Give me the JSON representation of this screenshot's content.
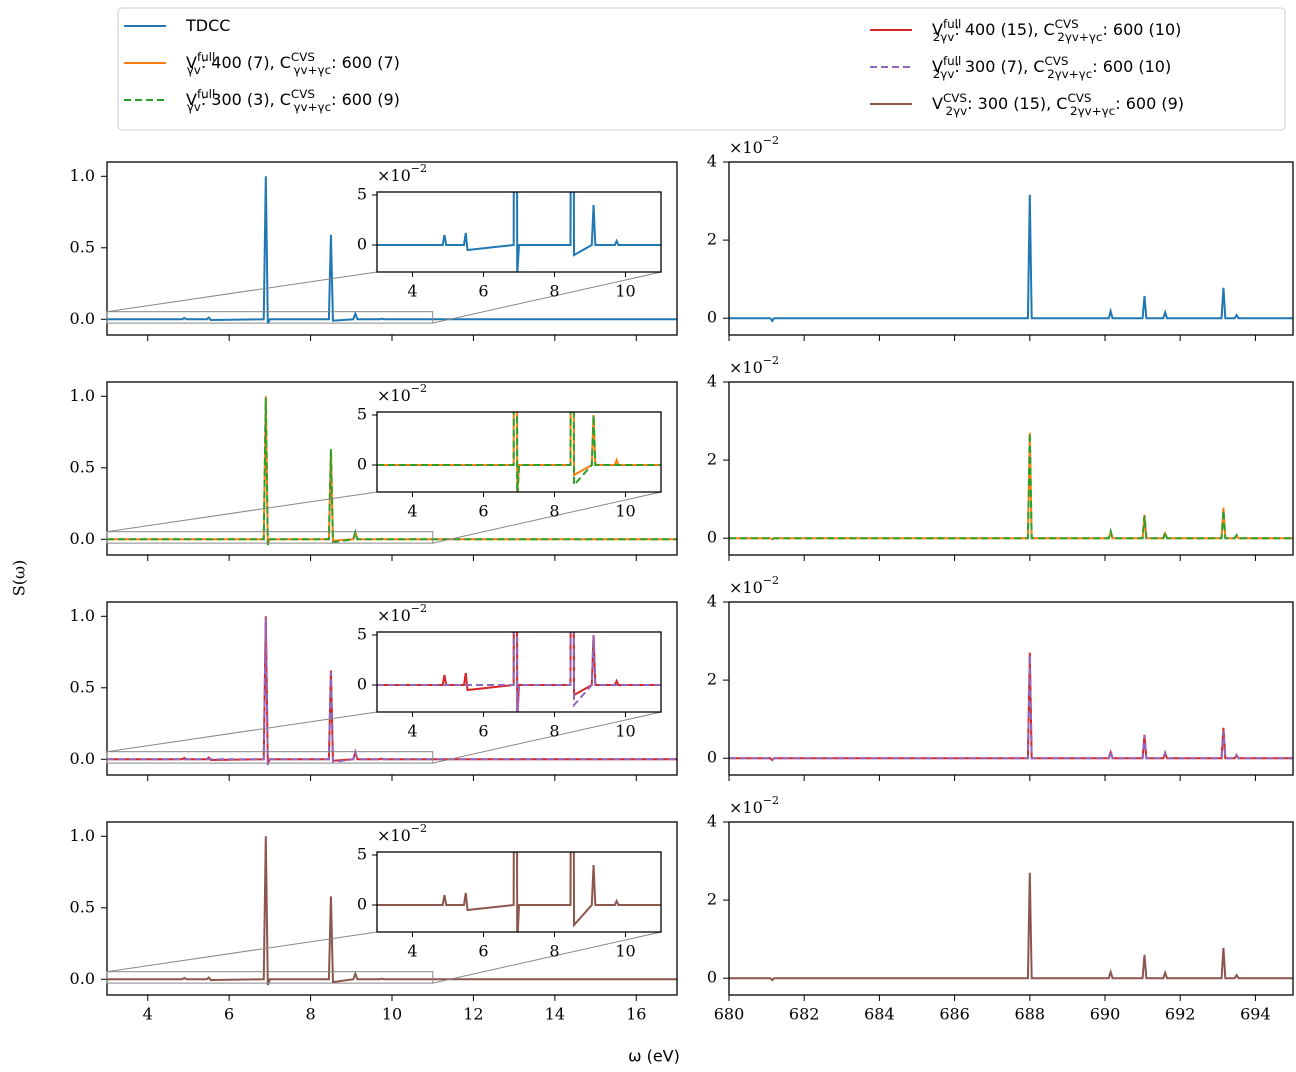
{
  "chart_data": {
    "type": "line",
    "xlabel": "ω (eV)",
    "ylabel": "S(ω)",
    "left": {
      "xlim": [
        3,
        17
      ],
      "xticks": [
        4,
        6,
        8,
        10,
        12,
        14,
        16
      ],
      "ylim": [
        -0.11,
        1.1
      ],
      "yticks": [
        {
          "value": 0,
          "label": "0.0"
        },
        {
          "value": 0.5,
          "label": "0.5"
        },
        {
          "value": 1,
          "label": "1.0"
        }
      ],
      "x": [
        3,
        4.85,
        4.9,
        4.95,
        5.45,
        5.5,
        5.55,
        6.85,
        6.9,
        6.95,
        7.0,
        8.45,
        8.5,
        8.55,
        9.05,
        9.1,
        9.15,
        9.7,
        9.75,
        9.8,
        17
      ],
      "inset": {
        "xlim": [
          3,
          11
        ],
        "xticks": [
          4,
          6,
          8,
          10
        ],
        "ylim": [
          -0.027,
          0.053
        ],
        "yticks": [
          {
            "value": 0,
            "label": "0"
          },
          {
            "value": 0.05,
            "label": "5"
          }
        ],
        "offset_label": {
          "base": "×10",
          "exponent": "−2"
        }
      }
    },
    "right": {
      "xlim": [
        680,
        695
      ],
      "xticks": [
        680,
        682,
        684,
        686,
        688,
        690,
        692,
        694
      ],
      "ylim": [
        -0.0043,
        0.04
      ],
      "yticks": [
        {
          "value": 0,
          "label": "0"
        },
        {
          "value": 0.02,
          "label": "2"
        },
        {
          "value": 0.04,
          "label": "4"
        }
      ],
      "offset_label": {
        "base": "×10",
        "exponent": "−2"
      },
      "x": [
        680,
        681.1,
        681.15,
        681.2,
        687.95,
        688.0,
        688.05,
        690.1,
        690.15,
        690.2,
        691.0,
        691.05,
        691.1,
        691.55,
        691.6,
        691.65,
        693.1,
        693.15,
        693.2,
        693.45,
        693.5,
        693.55,
        695
      ]
    },
    "rows": [
      {
        "series": [
          {
            "name": "TDCC",
            "color": "#1f77b4",
            "dashed": false,
            "left_values": [
              0,
              0,
              0.01,
              0,
              0,
              0.012,
              -0.005,
              0,
              1.0,
              -0.03,
              0,
              0,
              0.59,
              -0.01,
              0,
              0.04,
              0,
              0,
              0.004,
              0,
              0
            ],
            "right_values": [
              0,
              0,
              -0.0007,
              0,
              0,
              0.0316,
              0,
              0,
              0.0018,
              0,
              0,
              0.0057,
              0,
              0,
              0.0015,
              0,
              0,
              0.0078,
              0,
              0,
              0.0008,
              0,
              0
            ]
          }
        ]
      },
      {
        "series": [
          {
            "name": "V^{full}_{γv}: 400 (7), C^{CVS}_{γv+γc}: 600 (7)",
            "color": "#ff7f0e",
            "dashed": false,
            "left_values": [
              0,
              0,
              0,
              0,
              0,
              0,
              0,
              0,
              1.0,
              -0.03,
              0,
              0,
              0.62,
              -0.01,
              0,
              0.05,
              0,
              0,
              0.005,
              0,
              0
            ],
            "right_values": [
              0,
              0,
              -0.0003,
              0,
              0,
              0.027,
              0,
              0,
              0.0015,
              0,
              0,
              0.006,
              0,
              0,
              0.0012,
              0,
              0,
              0.0078,
              0,
              0,
              0.0006,
              0,
              0
            ]
          },
          {
            "name": "V^{full}_{γv}: 300 (3), C^{CVS}_{γv+γc}: 600 (9)",
            "color": "#2ca02c",
            "dashed": true,
            "left_values": [
              0,
              0,
              0,
              0,
              0,
              0,
              0,
              0,
              0.99,
              -0.04,
              0,
              0,
              0.63,
              -0.02,
              0,
              0.05,
              0,
              0,
              0,
              0,
              0
            ],
            "right_values": [
              0,
              0,
              -0.0003,
              0,
              0,
              0.027,
              0,
              0,
              0.0018,
              0,
              0,
              0.0058,
              0,
              0,
              0.0015,
              0,
              0,
              0.0072,
              0,
              0,
              0.0008,
              0,
              0
            ]
          }
        ]
      },
      {
        "series": [
          {
            "name": "V^{full}_{2γv}: 400 (15), C^{CVS}_{2γv+γc}: 600 (10)",
            "color": "#d62728",
            "dashed": false,
            "left_values": [
              0,
              0,
              0.01,
              0,
              0,
              0.012,
              -0.005,
              0,
              1.0,
              -0.03,
              0,
              0,
              0.62,
              -0.01,
              0,
              0.05,
              0,
              0,
              0.004,
              0,
              0
            ],
            "right_values": [
              0,
              0,
              -0.0005,
              0,
              0,
              0.027,
              0,
              0,
              0.0015,
              0,
              0,
              0.006,
              0,
              0,
              0.0012,
              0,
              0,
              0.0078,
              0,
              0,
              0.0008,
              0,
              0
            ]
          },
          {
            "name": "V^{full}_{2γv}: 300 (7), C^{CVS}_{2γv+γc}: 600 (10)",
            "color": "#9467bd",
            "dashed": true,
            "left_values": [
              0,
              0,
              0,
              0,
              0,
              0,
              0,
              0,
              0.99,
              -0.04,
              0,
              0,
              0.61,
              -0.02,
              0,
              0.05,
              0,
              0,
              0,
              0,
              0
            ],
            "right_values": [
              0,
              0,
              -0.0005,
              0,
              0,
              0.0265,
              0,
              0,
              0.0018,
              0,
              0,
              0.0058,
              0,
              0,
              0.0015,
              0,
              0,
              0.007,
              0,
              0,
              0.0008,
              0,
              0
            ]
          }
        ]
      },
      {
        "series": [
          {
            "name": "V^{CVS}_{2γv}: 300 (15), C^{CVS}_{2γv+γc}: 600 (9)",
            "color": "#8c564b",
            "dashed": false,
            "left_values": [
              0,
              0,
              0.01,
              0,
              0,
              0.012,
              -0.005,
              0,
              1.0,
              -0.04,
              0,
              0,
              0.58,
              -0.02,
              0,
              0.04,
              0,
              0,
              0.004,
              0,
              0
            ],
            "right_values": [
              0,
              0,
              -0.0005,
              0,
              0,
              0.027,
              0,
              0,
              0.0016,
              0,
              0,
              0.006,
              0,
              0,
              0.0014,
              0,
              0,
              0.0078,
              0,
              0,
              0.0008,
              0,
              0
            ]
          }
        ]
      }
    ]
  }
}
